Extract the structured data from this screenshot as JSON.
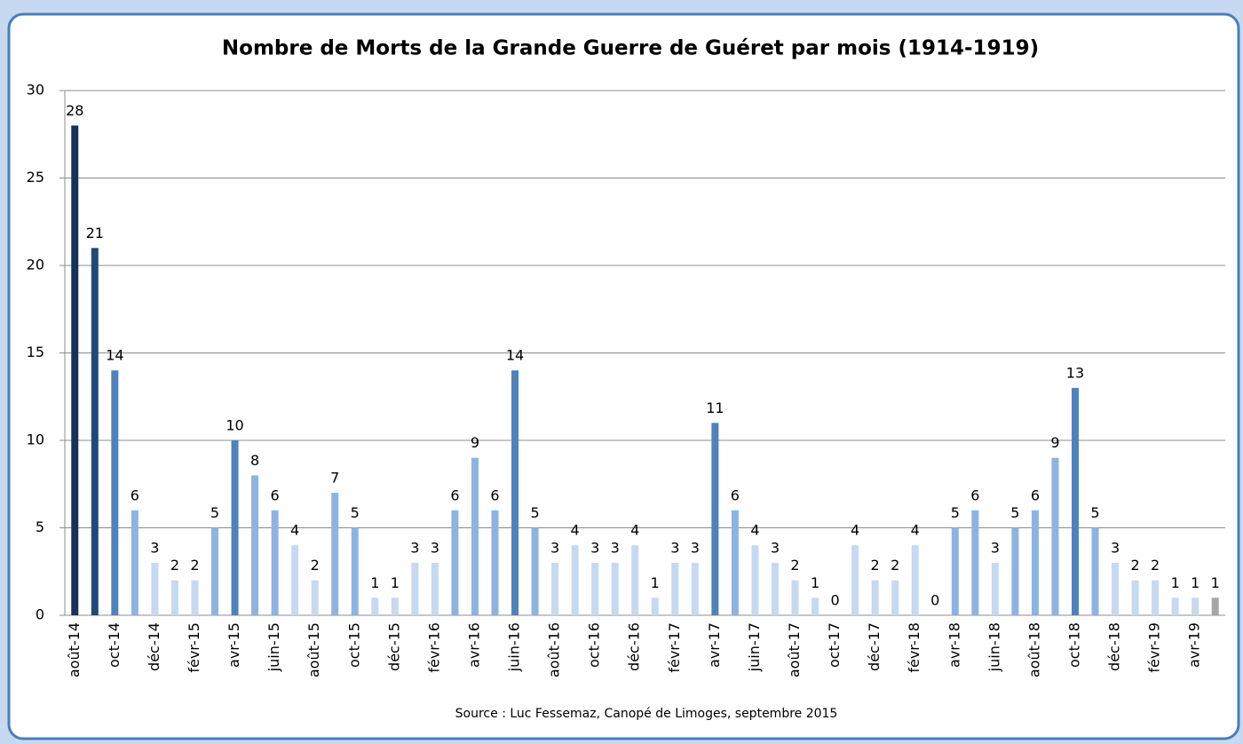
{
  "chart_data": {
    "type": "bar",
    "title": "Nombre de Morts de la Grande Guerre de Guéret par mois (1914-1919)",
    "source": "Source : Luc Fessemaz, Canopé de Limoges, septembre 2015",
    "categories": [
      "août-14",
      null,
      "oct-14",
      null,
      "déc-14",
      null,
      "févr-15",
      null,
      "avr-15",
      null,
      "juin-15",
      null,
      "août-15",
      null,
      "oct-15",
      null,
      "déc-15",
      null,
      "févr-16",
      null,
      "avr-16",
      null,
      "juin-16",
      null,
      "août-16",
      null,
      "oct-16",
      null,
      "déc-16",
      null,
      "févr-17",
      null,
      "avr-17",
      null,
      "juin-17",
      null,
      "août-17",
      null,
      "oct-17",
      null,
      "déc-17",
      null,
      "févr-18",
      null,
      "avr-18",
      null,
      "juin-18",
      null,
      "août-18",
      null,
      "oct-18",
      null,
      "déc-18",
      null,
      "févr-19",
      null,
      "avr-19",
      null
    ],
    "values": [
      28,
      21,
      14,
      6,
      3,
      2,
      2,
      5,
      10,
      8,
      6,
      4,
      2,
      7,
      5,
      1,
      1,
      3,
      3,
      6,
      9,
      6,
      14,
      5,
      3,
      4,
      3,
      3,
      4,
      1,
      3,
      3,
      11,
      6,
      4,
      3,
      2,
      1,
      0,
      4,
      2,
      2,
      4,
      0,
      5,
      6,
      3,
      5,
      6,
      9,
      13,
      5,
      3,
      2,
      2,
      1,
      1,
      1
    ],
    "colors": [
      "#17325a",
      "#1f497d",
      "#4f81bd",
      "#8db3e2",
      "#c6d9f1",
      "#c6d9f1",
      "#c6d9f1",
      "#8db3e2",
      "#4f81bd",
      "#8db3e2",
      "#8db3e2",
      "#c6d9f1",
      "#c6d9f1",
      "#8db3e2",
      "#8db3e2",
      "#c6d9f1",
      "#c6d9f1",
      "#c6d9f1",
      "#c6d9f1",
      "#8db3e2",
      "#8db3e2",
      "#8db3e2",
      "#4f81bd",
      "#8db3e2",
      "#c6d9f1",
      "#c6d9f1",
      "#c6d9f1",
      "#c6d9f1",
      "#c6d9f1",
      "#c6d9f1",
      "#c6d9f1",
      "#c6d9f1",
      "#4f81bd",
      "#8db3e2",
      "#c6d9f1",
      "#c6d9f1",
      "#c6d9f1",
      "#c6d9f1",
      "#c6d9f1",
      "#c6d9f1",
      "#c6d9f1",
      "#c6d9f1",
      "#c6d9f1",
      "#c6d9f1",
      "#8db3e2",
      "#8db3e2",
      "#c6d9f1",
      "#8db3e2",
      "#8db3e2",
      "#8db3e2",
      "#4f81bd",
      "#8db3e2",
      "#c6d9f1",
      "#c6d9f1",
      "#c6d9f1",
      "#c6d9f1",
      "#c6d9f1",
      "#a6a6a6"
    ],
    "ylim": [
      0,
      30
    ],
    "yticks": [
      0,
      5,
      10,
      15,
      20,
      25,
      30
    ],
    "grid": true
  }
}
